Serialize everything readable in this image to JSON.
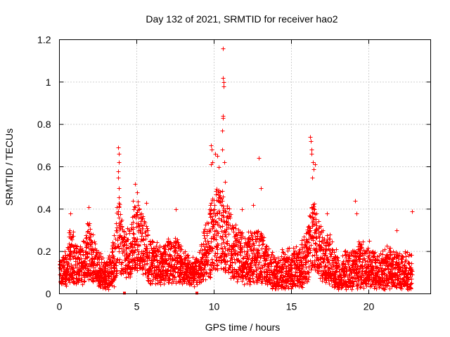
{
  "chart_data": {
    "type": "scatter",
    "title": "Day 132 of 2021, SRMTID for receiver hao2",
    "xlabel": "GPS time / hours",
    "ylabel": "SRMTID / TECUs",
    "xlim": [
      0,
      24
    ],
    "ylim": [
      0,
      1.2
    ],
    "xticks": [
      0,
      5,
      10,
      15,
      20
    ],
    "xtick_labels": [
      "0",
      "5",
      "10",
      "15",
      "20"
    ],
    "yticks": [
      0,
      0.2,
      0.4,
      0.6,
      0.8,
      1,
      1.2
    ],
    "ytick_labels": [
      "0",
      "0.2",
      "0.4",
      "0.6",
      "0.8",
      "1",
      "1.2"
    ],
    "grid": true,
    "marker": "+",
    "color": "#ff0000",
    "baseline_markers_x": [
      4.2,
      8.9
    ],
    "envelope": [
      [
        0.0,
        0.09,
        0.16
      ],
      [
        0.5,
        0.09,
        0.2
      ],
      [
        0.7,
        0.1,
        0.36
      ],
      [
        1.0,
        0.1,
        0.22
      ],
      [
        1.5,
        0.1,
        0.22
      ],
      [
        1.8,
        0.12,
        0.38
      ],
      [
        2.0,
        0.12,
        0.32
      ],
      [
        2.5,
        0.08,
        0.2
      ],
      [
        3.0,
        0.03,
        0.14
      ],
      [
        3.3,
        0.05,
        0.2
      ],
      [
        3.6,
        0.1,
        0.3
      ],
      [
        3.8,
        0.2,
        0.5
      ],
      [
        4.0,
        0.15,
        0.35
      ],
      [
        4.5,
        0.15,
        0.3
      ],
      [
        4.8,
        0.18,
        0.45
      ],
      [
        5.0,
        0.2,
        0.45
      ],
      [
        5.5,
        0.15,
        0.35
      ],
      [
        6.0,
        0.1,
        0.25
      ],
      [
        6.5,
        0.1,
        0.22
      ],
      [
        7.0,
        0.1,
        0.25
      ],
      [
        7.5,
        0.1,
        0.28
      ],
      [
        8.0,
        0.1,
        0.2
      ],
      [
        8.5,
        0.08,
        0.16
      ],
      [
        9.0,
        0.1,
        0.18
      ],
      [
        9.3,
        0.12,
        0.3
      ],
      [
        9.7,
        0.15,
        0.4
      ],
      [
        10.0,
        0.2,
        0.5
      ],
      [
        10.3,
        0.2,
        0.48
      ],
      [
        10.6,
        0.2,
        0.5
      ],
      [
        11.0,
        0.15,
        0.38
      ],
      [
        11.5,
        0.12,
        0.3
      ],
      [
        12.0,
        0.1,
        0.28
      ],
      [
        12.5,
        0.1,
        0.3
      ],
      [
        13.0,
        0.1,
        0.3
      ],
      [
        13.5,
        0.08,
        0.2
      ],
      [
        14.0,
        0.06,
        0.16
      ],
      [
        14.5,
        0.06,
        0.2
      ],
      [
        15.0,
        0.06,
        0.2
      ],
      [
        15.5,
        0.06,
        0.22
      ],
      [
        16.0,
        0.1,
        0.3
      ],
      [
        16.3,
        0.2,
        0.45
      ],
      [
        16.6,
        0.2,
        0.4
      ],
      [
        17.0,
        0.12,
        0.3
      ],
      [
        17.5,
        0.1,
        0.28
      ],
      [
        18.0,
        0.05,
        0.16
      ],
      [
        18.5,
        0.05,
        0.2
      ],
      [
        19.0,
        0.06,
        0.22
      ],
      [
        19.5,
        0.08,
        0.25
      ],
      [
        20.0,
        0.08,
        0.2
      ],
      [
        20.5,
        0.06,
        0.18
      ],
      [
        21.0,
        0.06,
        0.2
      ],
      [
        21.5,
        0.08,
        0.22
      ],
      [
        22.0,
        0.06,
        0.18
      ],
      [
        22.5,
        0.05,
        0.2
      ],
      [
        22.8,
        0.05,
        0.22
      ]
    ],
    "outliers": [
      [
        0.7,
        0.38
      ],
      [
        1.9,
        0.41
      ],
      [
        3.8,
        0.69
      ],
      [
        3.82,
        0.66
      ],
      [
        3.85,
        0.62
      ],
      [
        3.8,
        0.58
      ],
      [
        3.78,
        0.55
      ],
      [
        3.86,
        0.5
      ],
      [
        4.9,
        0.52
      ],
      [
        5.0,
        0.48
      ],
      [
        5.6,
        0.43
      ],
      [
        7.5,
        0.4
      ],
      [
        9.8,
        0.7
      ],
      [
        9.85,
        0.68
      ],
      [
        9.8,
        0.61
      ],
      [
        9.9,
        0.62
      ],
      [
        10.05,
        0.66
      ],
      [
        10.2,
        0.65
      ],
      [
        10.3,
        0.6
      ],
      [
        10.5,
        0.68
      ],
      [
        10.55,
        0.84
      ],
      [
        10.58,
        0.83
      ],
      [
        10.52,
        0.77
      ],
      [
        10.6,
        1.0
      ],
      [
        10.62,
        0.98
      ],
      [
        10.58,
        1.02
      ],
      [
        10.55,
        1.16
      ],
      [
        10.65,
        0.62
      ],
      [
        10.7,
        0.53
      ],
      [
        11.8,
        0.4
      ],
      [
        12.5,
        0.42
      ],
      [
        12.9,
        0.64
      ],
      [
        13.0,
        0.5
      ],
      [
        16.2,
        0.74
      ],
      [
        16.25,
        0.72
      ],
      [
        16.3,
        0.68
      ],
      [
        16.3,
        0.66
      ],
      [
        16.4,
        0.62
      ],
      [
        16.5,
        0.61
      ],
      [
        16.45,
        0.59
      ],
      [
        16.35,
        0.55
      ],
      [
        17.3,
        0.38
      ],
      [
        19.1,
        0.44
      ],
      [
        19.2,
        0.38
      ],
      [
        22.8,
        0.39
      ],
      [
        20.0,
        0.25
      ],
      [
        21.8,
        0.3
      ]
    ]
  }
}
